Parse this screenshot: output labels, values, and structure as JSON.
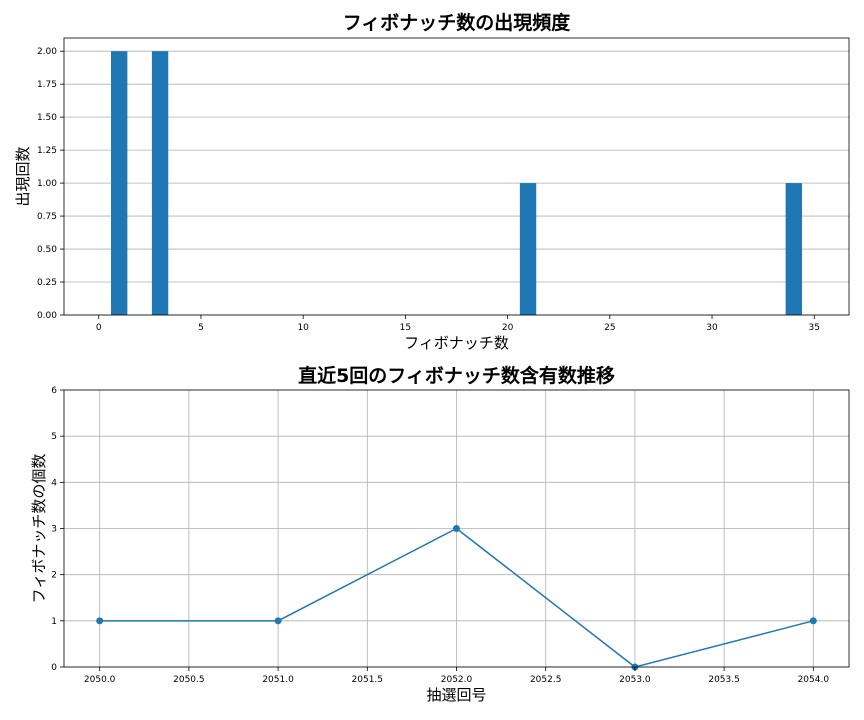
{
  "chart_data": [
    {
      "type": "bar",
      "title": "フィボナッチ数の出現頻度",
      "xlabel": "フィボナッチ数",
      "ylabel": "出現回数",
      "xlim": [
        -1.7,
        36.7
      ],
      "ylim": [
        0,
        2.1
      ],
      "xticks": [
        0,
        5,
        10,
        15,
        20,
        25,
        30,
        35
      ],
      "xtick_labels": [
        "0",
        "5",
        "10",
        "15",
        "20",
        "25",
        "30",
        "35"
      ],
      "yticks": [
        0,
        0.25,
        0.5,
        0.75,
        1.0,
        1.25,
        1.5,
        1.75,
        2.0
      ],
      "ytick_labels": [
        "0.00",
        "0.25",
        "0.50",
        "0.75",
        "1.00",
        "1.25",
        "1.50",
        "1.75",
        "2.00"
      ],
      "bar_width": 0.8,
      "grid": "y",
      "color": "#1f77b4",
      "x": [
        1,
        3,
        21,
        34
      ],
      "values": [
        2,
        2,
        1,
        1
      ]
    },
    {
      "type": "line",
      "title": "直近5回のフィボナッチ数含有数推移",
      "xlabel": "抽選回号",
      "ylabel": "フィボナッチ数の個数",
      "xlim": [
        2049.8,
        2054.2
      ],
      "ylim": [
        0,
        6
      ],
      "xticks": [
        2050.0,
        2050.5,
        2051.0,
        2051.5,
        2052.0,
        2052.5,
        2053.0,
        2053.5,
        2054.0
      ],
      "xtick_labels": [
        "2050.0",
        "2050.5",
        "2051.0",
        "2051.5",
        "2052.0",
        "2052.5",
        "2053.0",
        "2053.5",
        "2054.0"
      ],
      "yticks": [
        0,
        1,
        2,
        3,
        4,
        5,
        6
      ],
      "ytick_labels": [
        "0",
        "1",
        "2",
        "3",
        "4",
        "5",
        "6"
      ],
      "grid": "both",
      "marker": "circle",
      "color": "#1f77b4",
      "x": [
        2050,
        2051,
        2052,
        2053,
        2054
      ],
      "y": [
        1,
        1,
        3,
        0,
        1
      ]
    }
  ]
}
